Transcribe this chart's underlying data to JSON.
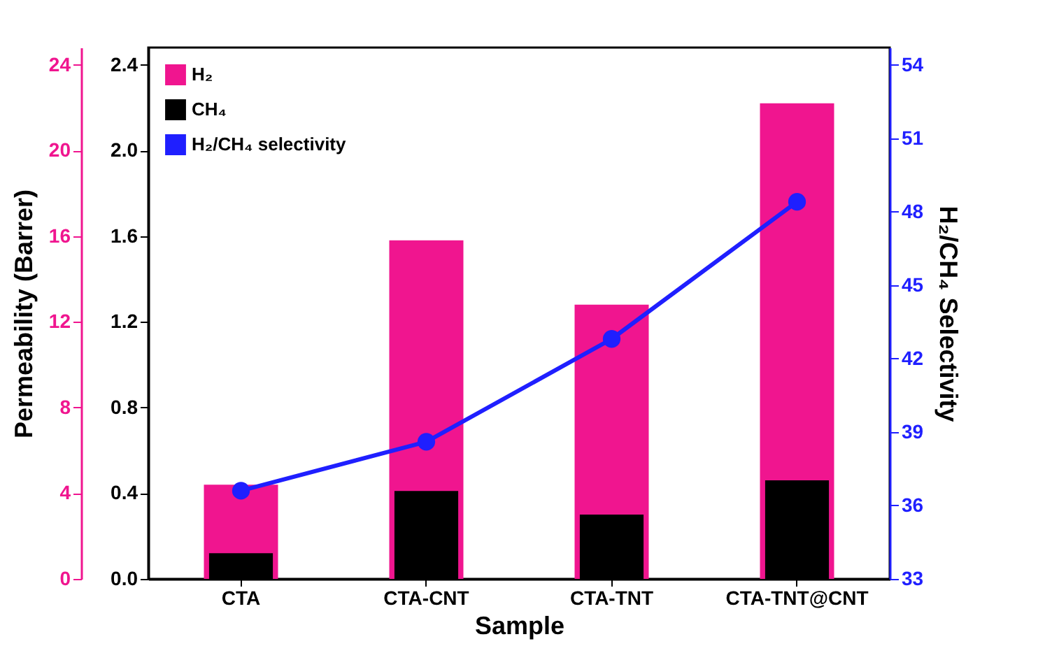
{
  "chart_data": {
    "type": "bar",
    "xlabel": "Sample",
    "ylabel": "Permeability (Barrer)",
    "y3label": "H₂/CH₄ Selectivity",
    "categories": [
      "CTA",
      "CTA-CNT",
      "CTA-TNT",
      "CTA-TNT@CNT"
    ],
    "series": [
      {
        "name": "H₂",
        "color": "#f0158f",
        "values": [
          4.4,
          15.8,
          12.8,
          22.2
        ],
        "axis": "y"
      },
      {
        "name": "CH₄",
        "color": "#000000",
        "values": [
          0.12,
          0.41,
          0.3,
          0.46
        ],
        "axis": "y2"
      },
      {
        "name": "H₂/CH₄ selectivity",
        "color": "#1f1fff",
        "type": "line",
        "values": [
          36.6,
          38.6,
          42.8,
          48.4
        ],
        "axis": "y3"
      }
    ],
    "ylim": [
      0,
      24.8
    ],
    "yticks": [
      0,
      4,
      8,
      12,
      16,
      20,
      24
    ],
    "y2lim": [
      0,
      2.48
    ],
    "y2ticks": [
      {
        "value": 0,
        "label": "0.0"
      },
      0.4,
      0.8,
      1.2,
      1.6,
      {
        "value": 2,
        "label": "2.0"
      },
      2.4
    ],
    "y3lim": [
      33,
      54.7
    ],
    "y3ticks": [
      33,
      36,
      39,
      42,
      45,
      48,
      51,
      54
    ],
    "marker": "circle",
    "line_style": "solid",
    "grid": false,
    "legend": "top left"
  }
}
